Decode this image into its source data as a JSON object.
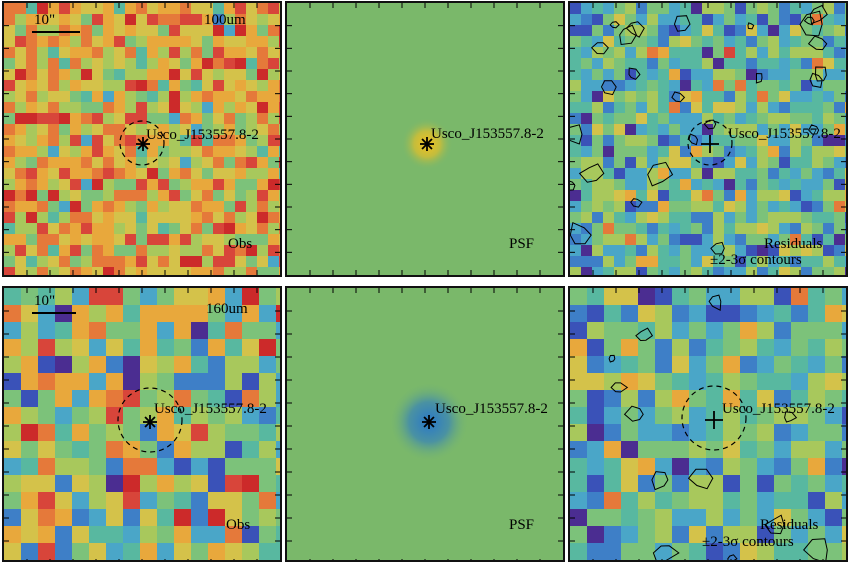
{
  "figure": {
    "scale_label": "10\"",
    "source_label": "Usco_J153557.8-2",
    "rows": [
      {
        "band": "100um",
        "panels": [
          {
            "kind": "observed",
            "label": "Obs",
            "marker": "asterisk",
            "aperture": true
          },
          {
            "kind": "psf",
            "label": "PSF",
            "marker": "asterisk",
            "aperture": false
          },
          {
            "kind": "residual",
            "label": "Residuals",
            "label2": "±2-3σ contours",
            "marker": "plus",
            "aperture": true
          }
        ]
      },
      {
        "band": "160um",
        "panels": [
          {
            "kind": "observed",
            "label": "Obs",
            "marker": "asterisk",
            "aperture": true
          },
          {
            "kind": "psf",
            "label": "PSF",
            "marker": "asterisk",
            "aperture": false
          },
          {
            "kind": "residual",
            "label": "Residuals",
            "label2": "±2-3σ contours",
            "marker": "plus",
            "aperture": true
          }
        ]
      }
    ],
    "colors": {
      "psf_background": "#7ab86a",
      "psf_core_100": "#f2c020",
      "psf_core_160": "#2a78c8",
      "frame": "#111111"
    }
  }
}
